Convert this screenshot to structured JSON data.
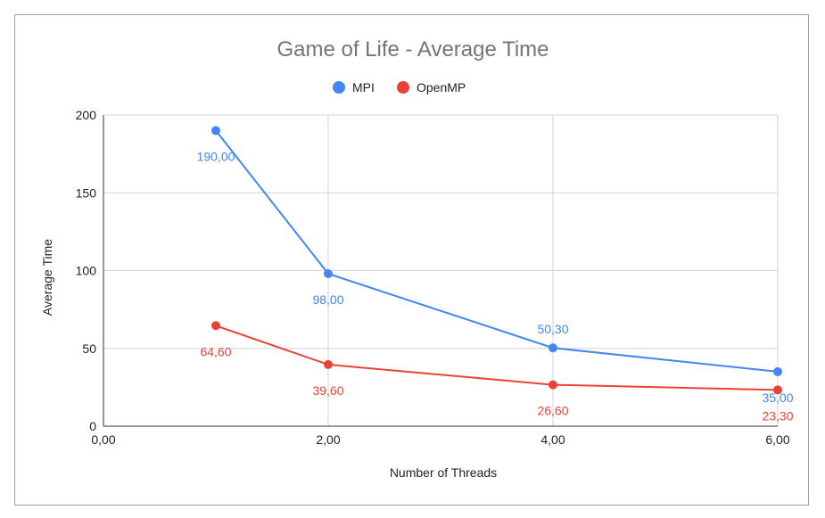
{
  "chart_data": {
    "type": "line",
    "title": "Game of Life - Average Time",
    "xlabel": "Number of Threads",
    "ylabel": "Average Time",
    "xlim": [
      0,
      6
    ],
    "ylim": [
      0,
      200
    ],
    "x_ticks": [
      "0,00",
      "2,00",
      "4,00",
      "6,00"
    ],
    "x_tick_values": [
      0,
      2,
      4,
      6
    ],
    "y_ticks": [
      "0",
      "50",
      "100",
      "150",
      "200"
    ],
    "y_tick_values": [
      0,
      50,
      100,
      150,
      200
    ],
    "grid": true,
    "legend_position": "top",
    "series": [
      {
        "name": "MPI",
        "color": "#4285f4",
        "x": [
          1,
          2,
          4,
          6
        ],
        "y": [
          190,
          98,
          50.3,
          35
        ],
        "labels": [
          "190,00",
          "98,00",
          "50,30",
          "35,00"
        ]
      },
      {
        "name": "OpenMP",
        "color": "#ea4335",
        "x": [
          1,
          2,
          4,
          6
        ],
        "y": [
          64.6,
          39.6,
          26.6,
          23.3
        ],
        "labels": [
          "64,60",
          "39,60",
          "26,60",
          "23,30"
        ]
      }
    ]
  }
}
